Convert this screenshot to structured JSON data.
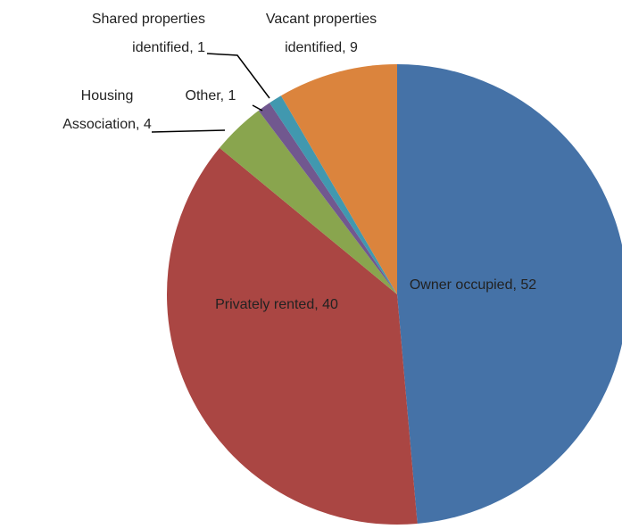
{
  "chart_data": {
    "type": "pie",
    "values": [
      52,
      40,
      4,
      1,
      1,
      9
    ],
    "value_labels": [
      [
        "Owner occupied, 52"
      ],
      [
        "Privately rented, 40"
      ],
      [
        "Housing",
        "Association, 4"
      ],
      [
        "Other, 1"
      ],
      [
        "Shared properties",
        "identified, 1"
      ],
      [
        "Vacant properties",
        "identified, 9"
      ]
    ],
    "colors": [
      "#4572a7",
      "#aa4643",
      "#89a54e",
      "#71588f",
      "#4198af",
      "#db843d"
    ]
  }
}
